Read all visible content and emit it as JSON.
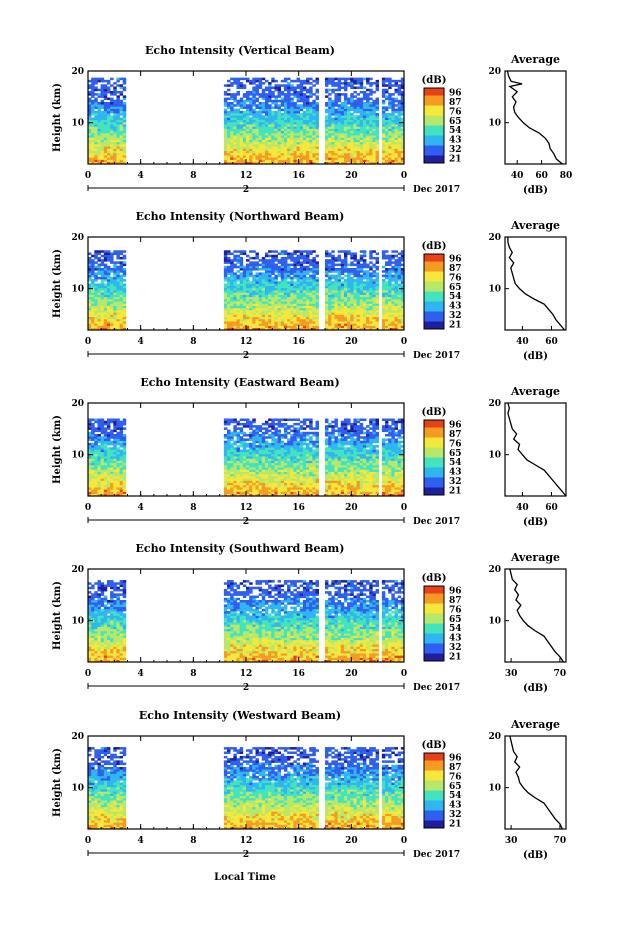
{
  "figure": {
    "xlabel": "Local Time",
    "date_label": "Dec 2017",
    "day_label": "2",
    "colorbar_unit": "(dB)",
    "colorbar_ticks": [
      "96",
      "87",
      "76",
      "65",
      "54",
      "43",
      "32",
      "21"
    ],
    "colors": {
      "missing": "#ffffff",
      "colormap": [
        "#1f1f9e",
        "#2f5ff0",
        "#2fb6f0",
        "#43e3c0",
        "#b8e86a",
        "#f5e83a",
        "#f59a22",
        "#e84018"
      ]
    }
  },
  "chart_data": [
    {
      "type": "heatmap",
      "title": "Echo Intensity (Vertical Beam)",
      "xlabel": "",
      "ylabel": "Height (km)",
      "x_ticks": [
        "0",
        "4",
        "8",
        "12",
        "16",
        "20",
        "0"
      ],
      "y_ticks": [
        "20",
        "10"
      ],
      "xlim": [
        0,
        24
      ],
      "ylim": [
        2,
        20
      ],
      "data_gaps_hours": [
        [
          3.0,
          10.2
        ],
        [
          17.6,
          17.9
        ],
        [
          22.2,
          22.4
        ]
      ],
      "echo_top_km": 18.5,
      "profile": {
        "title": "Average",
        "xlabel": "(dB)",
        "x_ticks": [
          "40",
          "60",
          "80"
        ],
        "xlim": [
          30,
          80
        ],
        "ylim": [
          2,
          20
        ],
        "points": [
          [
            77,
            2
          ],
          [
            72,
            3
          ],
          [
            70,
            4
          ],
          [
            67,
            5
          ],
          [
            66,
            6
          ],
          [
            63,
            7
          ],
          [
            58,
            8
          ],
          [
            50,
            9
          ],
          [
            45,
            10
          ],
          [
            41,
            11
          ],
          [
            38,
            12
          ],
          [
            37,
            13
          ],
          [
            39,
            14
          ],
          [
            36,
            15
          ],
          [
            40,
            16
          ],
          [
            34,
            17
          ],
          [
            44,
            17.5
          ],
          [
            35,
            18
          ],
          [
            33,
            19
          ],
          [
            32,
            20
          ]
        ]
      }
    },
    {
      "type": "heatmap",
      "title": "Echo Intensity (Northward Beam)",
      "xlabel": "",
      "ylabel": "Height (km)",
      "x_ticks": [
        "0",
        "4",
        "8",
        "12",
        "16",
        "20",
        "0"
      ],
      "y_ticks": [
        "20",
        "10"
      ],
      "xlim": [
        0,
        24
      ],
      "ylim": [
        2,
        20
      ],
      "data_gaps_hours": [
        [
          3.0,
          10.2
        ],
        [
          17.6,
          17.9
        ],
        [
          22.2,
          22.4
        ]
      ],
      "echo_top_km": 17.5,
      "profile": {
        "title": "Average",
        "xlabel": "(dB)",
        "x_ticks": [
          "40",
          "60"
        ],
        "xlim": [
          28,
          70
        ],
        "ylim": [
          2,
          20
        ],
        "points": [
          [
            69,
            2
          ],
          [
            66,
            3
          ],
          [
            63,
            4
          ],
          [
            61,
            5
          ],
          [
            58,
            6
          ],
          [
            55,
            7
          ],
          [
            48,
            8
          ],
          [
            42,
            9
          ],
          [
            38,
            10
          ],
          [
            35,
            11
          ],
          [
            34,
            12
          ],
          [
            33,
            13
          ],
          [
            32,
            14
          ],
          [
            34,
            15
          ],
          [
            31,
            16
          ],
          [
            33,
            17
          ],
          [
            31,
            18
          ],
          [
            30,
            19
          ],
          [
            30,
            20
          ]
        ]
      }
    },
    {
      "type": "heatmap",
      "title": "Echo Intensity (Eastward Beam)",
      "xlabel": "",
      "ylabel": "Height (km)",
      "x_ticks": [
        "0",
        "4",
        "8",
        "12",
        "16",
        "20",
        "0"
      ],
      "y_ticks": [
        "20",
        "10"
      ],
      "xlim": [
        0,
        24
      ],
      "ylim": [
        2,
        20
      ],
      "data_gaps_hours": [
        [
          3.0,
          10.2
        ],
        [
          17.6,
          17.9
        ],
        [
          22.2,
          22.4
        ]
      ],
      "echo_top_km": 17.0,
      "profile": {
        "title": "Average",
        "xlabel": "(dB)",
        "x_ticks": [
          "40",
          "60"
        ],
        "xlim": [
          28,
          70
        ],
        "ylim": [
          2,
          20
        ],
        "points": [
          [
            70,
            2
          ],
          [
            67,
            3
          ],
          [
            64,
            4
          ],
          [
            61,
            5
          ],
          [
            58,
            6
          ],
          [
            55,
            7
          ],
          [
            49,
            8
          ],
          [
            43,
            9
          ],
          [
            40,
            10
          ],
          [
            37,
            11
          ],
          [
            38,
            12
          ],
          [
            34,
            13
          ],
          [
            36,
            14
          ],
          [
            33,
            15
          ],
          [
            32,
            16
          ],
          [
            31,
            17
          ],
          [
            30,
            18
          ],
          [
            31,
            19
          ],
          [
            30,
            20
          ]
        ]
      }
    },
    {
      "type": "heatmap",
      "title": "Echo Intensity (Southward Beam)",
      "xlabel": "",
      "ylabel": "Height (km)",
      "x_ticks": [
        "0",
        "4",
        "8",
        "12",
        "16",
        "20",
        "0"
      ],
      "y_ticks": [
        "20",
        "10"
      ],
      "xlim": [
        0,
        24
      ],
      "ylim": [
        2,
        20
      ],
      "data_gaps_hours": [
        [
          3.0,
          10.2
        ],
        [
          17.6,
          17.9
        ],
        [
          22.2,
          22.4
        ]
      ],
      "echo_top_km": 18.0,
      "profile": {
        "title": "Average",
        "xlabel": "(dB)",
        "x_ticks": [
          "30",
          "70"
        ],
        "xlim": [
          25,
          75
        ],
        "ylim": [
          2,
          20
        ],
        "points": [
          [
            73,
            2
          ],
          [
            70,
            3
          ],
          [
            66,
            4
          ],
          [
            63,
            5
          ],
          [
            60,
            6
          ],
          [
            57,
            7
          ],
          [
            50,
            8
          ],
          [
            44,
            9
          ],
          [
            40,
            10
          ],
          [
            37,
            11
          ],
          [
            35,
            12
          ],
          [
            38,
            13
          ],
          [
            34,
            14
          ],
          [
            36,
            15
          ],
          [
            33,
            16
          ],
          [
            35,
            17
          ],
          [
            31,
            18
          ],
          [
            30,
            19
          ],
          [
            29,
            20
          ]
        ]
      }
    },
    {
      "type": "heatmap",
      "title": "Echo Intensity (Westward Beam)",
      "xlabel": "",
      "ylabel": "Height (km)",
      "x_ticks": [
        "0",
        "4",
        "8",
        "12",
        "16",
        "20",
        "0"
      ],
      "y_ticks": [
        "20",
        "10"
      ],
      "xlim": [
        0,
        24
      ],
      "ylim": [
        2,
        20
      ],
      "data_gaps_hours": [
        [
          3.0,
          10.2
        ],
        [
          17.6,
          17.9
        ],
        [
          22.2,
          22.4
        ]
      ],
      "echo_top_km": 18.0,
      "profile": {
        "title": "Average",
        "xlabel": "(dB)",
        "x_ticks": [
          "30",
          "70"
        ],
        "xlim": [
          25,
          75
        ],
        "ylim": [
          2,
          20
        ],
        "points": [
          [
            72,
            2
          ],
          [
            70,
            3
          ],
          [
            66,
            4
          ],
          [
            63,
            5
          ],
          [
            60,
            6
          ],
          [
            57,
            7
          ],
          [
            50,
            8
          ],
          [
            44,
            9
          ],
          [
            40,
            10
          ],
          [
            37,
            11
          ],
          [
            36,
            12
          ],
          [
            34,
            13
          ],
          [
            37,
            14
          ],
          [
            33,
            15
          ],
          [
            35,
            16
          ],
          [
            32,
            17
          ],
          [
            31,
            18
          ],
          [
            30,
            19
          ],
          [
            29,
            20
          ]
        ]
      }
    }
  ]
}
